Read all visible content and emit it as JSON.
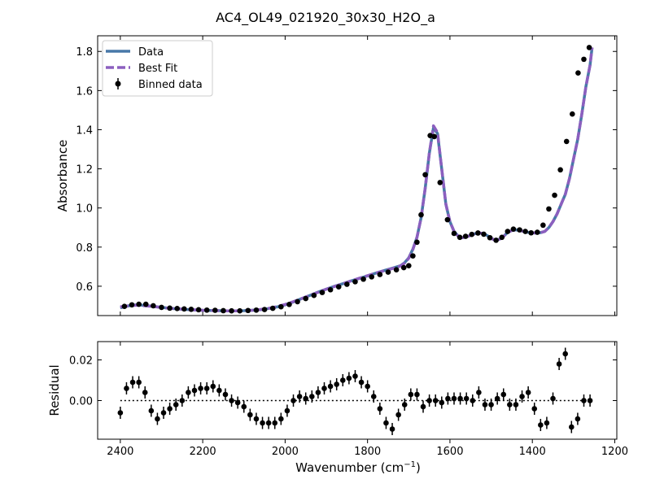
{
  "chart_data": {
    "type": "line",
    "title": "AC4_OL49_021920_30x30_H2O_a",
    "xlabel_main": "Wavenumber (cm",
    "xlabel_sup": "−1",
    "xlabel_tail": ")",
    "x_reversed": true,
    "xlim": [
      2455,
      1195
    ],
    "xticks": [
      2400,
      2200,
      2000,
      1800,
      1600,
      1400,
      1200
    ],
    "xtick_labels": [
      "2400",
      "2200",
      "2000",
      "1800",
      "1600",
      "1400",
      "1200"
    ],
    "top": {
      "ylabel": "Absorbance",
      "ylim": [
        0.45,
        1.88
      ],
      "yticks": [
        0.6,
        0.8,
        1.0,
        1.2,
        1.4,
        1.6,
        1.8
      ],
      "ytick_labels": [
        "0.6",
        "0.8",
        "1.0",
        "1.2",
        "1.4",
        "1.6",
        "1.8"
      ],
      "legend_position": "top-left",
      "legend": [
        "Data",
        "Best Fit",
        "Binned data"
      ],
      "series": [
        {
          "name": "Data",
          "color": "#4878a8",
          "x": [
            2400,
            2380,
            2360,
            2340,
            2320,
            2300,
            2280,
            2260,
            2240,
            2220,
            2200,
            2180,
            2160,
            2140,
            2120,
            2100,
            2080,
            2060,
            2040,
            2020,
            2000,
            1980,
            1960,
            1940,
            1920,
            1900,
            1880,
            1860,
            1840,
            1820,
            1800,
            1780,
            1760,
            1740,
            1720,
            1710,
            1700,
            1690,
            1680,
            1670,
            1660,
            1650,
            1640,
            1630,
            1620,
            1610,
            1600,
            1590,
            1580,
            1570,
            1560,
            1550,
            1540,
            1530,
            1520,
            1510,
            1500,
            1490,
            1480,
            1470,
            1460,
            1450,
            1440,
            1430,
            1420,
            1410,
            1400,
            1390,
            1380,
            1370,
            1360,
            1350,
            1340,
            1330,
            1320,
            1310,
            1300,
            1290,
            1280,
            1270,
            1260,
            1255
          ],
          "y": [
            0.49,
            0.5,
            0.505,
            0.502,
            0.497,
            0.492,
            0.487,
            0.484,
            0.481,
            0.479,
            0.477,
            0.476,
            0.475,
            0.474,
            0.474,
            0.475,
            0.477,
            0.48,
            0.486,
            0.494,
            0.505,
            0.52,
            0.537,
            0.553,
            0.57,
            0.585,
            0.6,
            0.613,
            0.627,
            0.64,
            0.653,
            0.667,
            0.68,
            0.692,
            0.705,
            0.72,
            0.745,
            0.79,
            0.85,
            0.95,
            1.1,
            1.28,
            1.41,
            1.38,
            1.2,
            1.02,
            0.93,
            0.88,
            0.856,
            0.848,
            0.852,
            0.86,
            0.868,
            0.872,
            0.87,
            0.86,
            0.845,
            0.835,
            0.84,
            0.855,
            0.875,
            0.885,
            0.888,
            0.885,
            0.88,
            0.875,
            0.873,
            0.872,
            0.874,
            0.88,
            0.9,
            0.93,
            0.97,
            1.02,
            1.07,
            1.15,
            1.25,
            1.35,
            1.48,
            1.62,
            1.73,
            1.82
          ]
        },
        {
          "name": "Best Fit",
          "color": "#8c5fbf",
          "x": [
            2400,
            2380,
            2360,
            2340,
            2320,
            2300,
            2280,
            2260,
            2240,
            2220,
            2200,
            2180,
            2160,
            2140,
            2120,
            2100,
            2080,
            2060,
            2040,
            2020,
            2000,
            1980,
            1960,
            1940,
            1920,
            1900,
            1880,
            1860,
            1840,
            1820,
            1800,
            1780,
            1760,
            1740,
            1720,
            1710,
            1700,
            1690,
            1680,
            1670,
            1660,
            1650,
            1640,
            1630,
            1620,
            1610,
            1600,
            1590,
            1580,
            1570,
            1560,
            1550,
            1540,
            1530,
            1520,
            1510,
            1500,
            1490,
            1480,
            1470,
            1460,
            1450,
            1440,
            1430,
            1420,
            1410,
            1400,
            1390,
            1380,
            1370,
            1360,
            1350,
            1340,
            1330,
            1320,
            1310,
            1300,
            1290,
            1280,
            1270,
            1260,
            1255
          ],
          "y": [
            0.495,
            0.5,
            0.503,
            0.5,
            0.496,
            0.491,
            0.487,
            0.484,
            0.481,
            0.479,
            0.477,
            0.476,
            0.475,
            0.474,
            0.474,
            0.475,
            0.477,
            0.481,
            0.487,
            0.496,
            0.507,
            0.521,
            0.537,
            0.553,
            0.569,
            0.585,
            0.599,
            0.613,
            0.627,
            0.641,
            0.654,
            0.667,
            0.679,
            0.69,
            0.703,
            0.718,
            0.743,
            0.788,
            0.85,
            0.95,
            1.1,
            1.28,
            1.42,
            1.385,
            1.2,
            1.02,
            0.93,
            0.88,
            0.856,
            0.848,
            0.852,
            0.86,
            0.868,
            0.872,
            0.87,
            0.86,
            0.845,
            0.835,
            0.84,
            0.855,
            0.875,
            0.885,
            0.888,
            0.885,
            0.88,
            0.875,
            0.873,
            0.872,
            0.874,
            0.88,
            0.9,
            0.93,
            0.97,
            1.02,
            1.07,
            1.15,
            1.25,
            1.35,
            1.48,
            1.62,
            1.73,
            1.82
          ]
        },
        {
          "name": "Binned data",
          "color": "#000000",
          "x": [
            2390,
            2372,
            2355,
            2338,
            2320,
            2300,
            2280,
            2262,
            2245,
            2228,
            2210,
            2190,
            2170,
            2150,
            2130,
            2110,
            2090,
            2070,
            2050,
            2030,
            2010,
            1990,
            1970,
            1950,
            1930,
            1910,
            1890,
            1870,
            1850,
            1830,
            1810,
            1790,
            1770,
            1750,
            1730,
            1712,
            1700,
            1690,
            1680,
            1670,
            1660,
            1648,
            1638,
            1624,
            1606,
            1590,
            1576,
            1562,
            1547,
            1532,
            1518,
            1503,
            1488,
            1474,
            1460,
            1446,
            1431,
            1417,
            1403,
            1388,
            1374,
            1360,
            1346,
            1332,
            1317,
            1303,
            1289,
            1275,
            1262
          ],
          "y": [
            0.497,
            0.505,
            0.508,
            0.508,
            0.5,
            0.492,
            0.488,
            0.486,
            0.484,
            0.482,
            0.48,
            0.478,
            0.477,
            0.475,
            0.474,
            0.474,
            0.476,
            0.478,
            0.481,
            0.487,
            0.495,
            0.507,
            0.521,
            0.537,
            0.553,
            0.568,
            0.582,
            0.597,
            0.61,
            0.623,
            0.636,
            0.648,
            0.66,
            0.672,
            0.684,
            0.695,
            0.705,
            0.755,
            0.825,
            0.965,
            1.17,
            1.37,
            1.365,
            1.13,
            0.94,
            0.87,
            0.85,
            0.855,
            0.865,
            0.872,
            0.866,
            0.848,
            0.835,
            0.85,
            0.88,
            0.892,
            0.888,
            0.88,
            0.873,
            0.876,
            0.912,
            0.995,
            1.065,
            1.195,
            1.34,
            1.48,
            1.69,
            1.76,
            1.82
          ]
        }
      ]
    },
    "bottom": {
      "ylabel": "Residual",
      "ylim": [
        -0.019,
        0.029
      ],
      "yticks": [
        0.0,
        0.02
      ],
      "ytick_labels": [
        "0.00",
        "0.02"
      ],
      "zero_line": true,
      "x": [
        2400,
        2385,
        2370,
        2355,
        2340,
        2325,
        2310,
        2295,
        2280,
        2265,
        2250,
        2235,
        2220,
        2205,
        2190,
        2175,
        2160,
        2145,
        2130,
        2115,
        2100,
        2085,
        2070,
        2055,
        2040,
        2025,
        2010,
        1995,
        1980,
        1965,
        1950,
        1935,
        1920,
        1905,
        1890,
        1875,
        1860,
        1845,
        1830,
        1815,
        1800,
        1785,
        1770,
        1755,
        1740,
        1725,
        1710,
        1695,
        1680,
        1665,
        1650,
        1635,
        1620,
        1605,
        1590,
        1575,
        1560,
        1545,
        1530,
        1515,
        1500,
        1485,
        1470,
        1455,
        1440,
        1425,
        1410,
        1395,
        1380,
        1365,
        1350,
        1335,
        1320,
        1305,
        1290,
        1275,
        1260
      ],
      "y": [
        -0.006,
        0.006,
        0.009,
        0.009,
        0.004,
        -0.005,
        -0.009,
        -0.006,
        -0.004,
        -0.002,
        0.0,
        0.004,
        0.005,
        0.006,
        0.006,
        0.007,
        0.005,
        0.003,
        0.0,
        -0.001,
        -0.003,
        -0.007,
        -0.009,
        -0.011,
        -0.011,
        -0.011,
        -0.009,
        -0.005,
        0.0,
        0.002,
        0.001,
        0.002,
        0.004,
        0.006,
        0.007,
        0.008,
        0.01,
        0.011,
        0.012,
        0.009,
        0.007,
        0.002,
        -0.004,
        -0.011,
        -0.014,
        -0.007,
        -0.002,
        0.003,
        0.003,
        -0.003,
        0.0,
        0.0,
        -0.001,
        0.001,
        0.001,
        0.001,
        0.001,
        0.0,
        0.004,
        -0.002,
        -0.002,
        0.001,
        0.003,
        -0.002,
        -0.002,
        0.002,
        0.004,
        -0.004,
        -0.012,
        -0.011,
        0.001,
        0.018,
        0.023,
        -0.013,
        -0.009,
        0.0,
        0.0
      ],
      "err": 0.003
    }
  }
}
